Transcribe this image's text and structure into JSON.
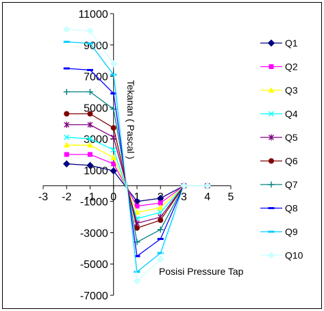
{
  "chart_data": {
    "type": "line",
    "title": "",
    "xlabel": "Posisi Pressure Tap",
    "ylabel": "Tekanan ( Pascal )",
    "xlim": [
      -3,
      5
    ],
    "ylim": [
      -7000,
      11000
    ],
    "x_ticks": [
      -3,
      -2,
      -1,
      0,
      1,
      2,
      3,
      4,
      5
    ],
    "y_ticks": [
      11000,
      9000,
      7000,
      5000,
      3000,
      1000,
      -1000,
      -3000,
      -5000,
      -7000
    ],
    "grid": false,
    "legend_position": "right",
    "x": [
      -2,
      -1,
      0,
      1,
      2,
      3,
      4
    ],
    "series": [
      {
        "name": "Q1",
        "color": "#000080",
        "marker": "diamond",
        "values": [
          1400,
          1300,
          950,
          -1000,
          -800,
          0,
          0
        ]
      },
      {
        "name": "Q2",
        "color": "#ff00ff",
        "marker": "square",
        "values": [
          2000,
          2000,
          1400,
          -1300,
          -1100,
          0,
          0
        ]
      },
      {
        "name": "Q3",
        "color": "#ffff00",
        "marker": "triangle",
        "values": [
          2600,
          2600,
          1800,
          -1700,
          -1400,
          0,
          0
        ]
      },
      {
        "name": "Q4",
        "color": "#00ffff",
        "marker": "x",
        "values": [
          3100,
          3000,
          2300,
          -2100,
          -1700,
          0,
          0
        ]
      },
      {
        "name": "Q5",
        "color": "#800080",
        "marker": "star",
        "values": [
          3900,
          3900,
          3100,
          -2400,
          -2000,
          0,
          0
        ]
      },
      {
        "name": "Q6",
        "color": "#800000",
        "marker": "circle",
        "values": [
          4600,
          4600,
          3700,
          -2700,
          -2200,
          0,
          0
        ]
      },
      {
        "name": "Q7",
        "color": "#008080",
        "marker": "plus",
        "values": [
          6000,
          6000,
          4900,
          -3600,
          -2800,
          0,
          0
        ]
      },
      {
        "name": "Q8",
        "color": "#0000ff",
        "marker": "dash",
        "values": [
          7500,
          7400,
          5900,
          -4500,
          -3400,
          0,
          0
        ]
      },
      {
        "name": "Q9",
        "color": "#00ccff",
        "marker": "dash",
        "values": [
          9200,
          9100,
          7100,
          -5500,
          -4300,
          0,
          0
        ]
      },
      {
        "name": "Q10",
        "color": "#ccffff",
        "marker": "diamond",
        "values": [
          10000,
          9900,
          7800,
          -6100,
          -4700,
          0,
          0
        ]
      }
    ]
  }
}
